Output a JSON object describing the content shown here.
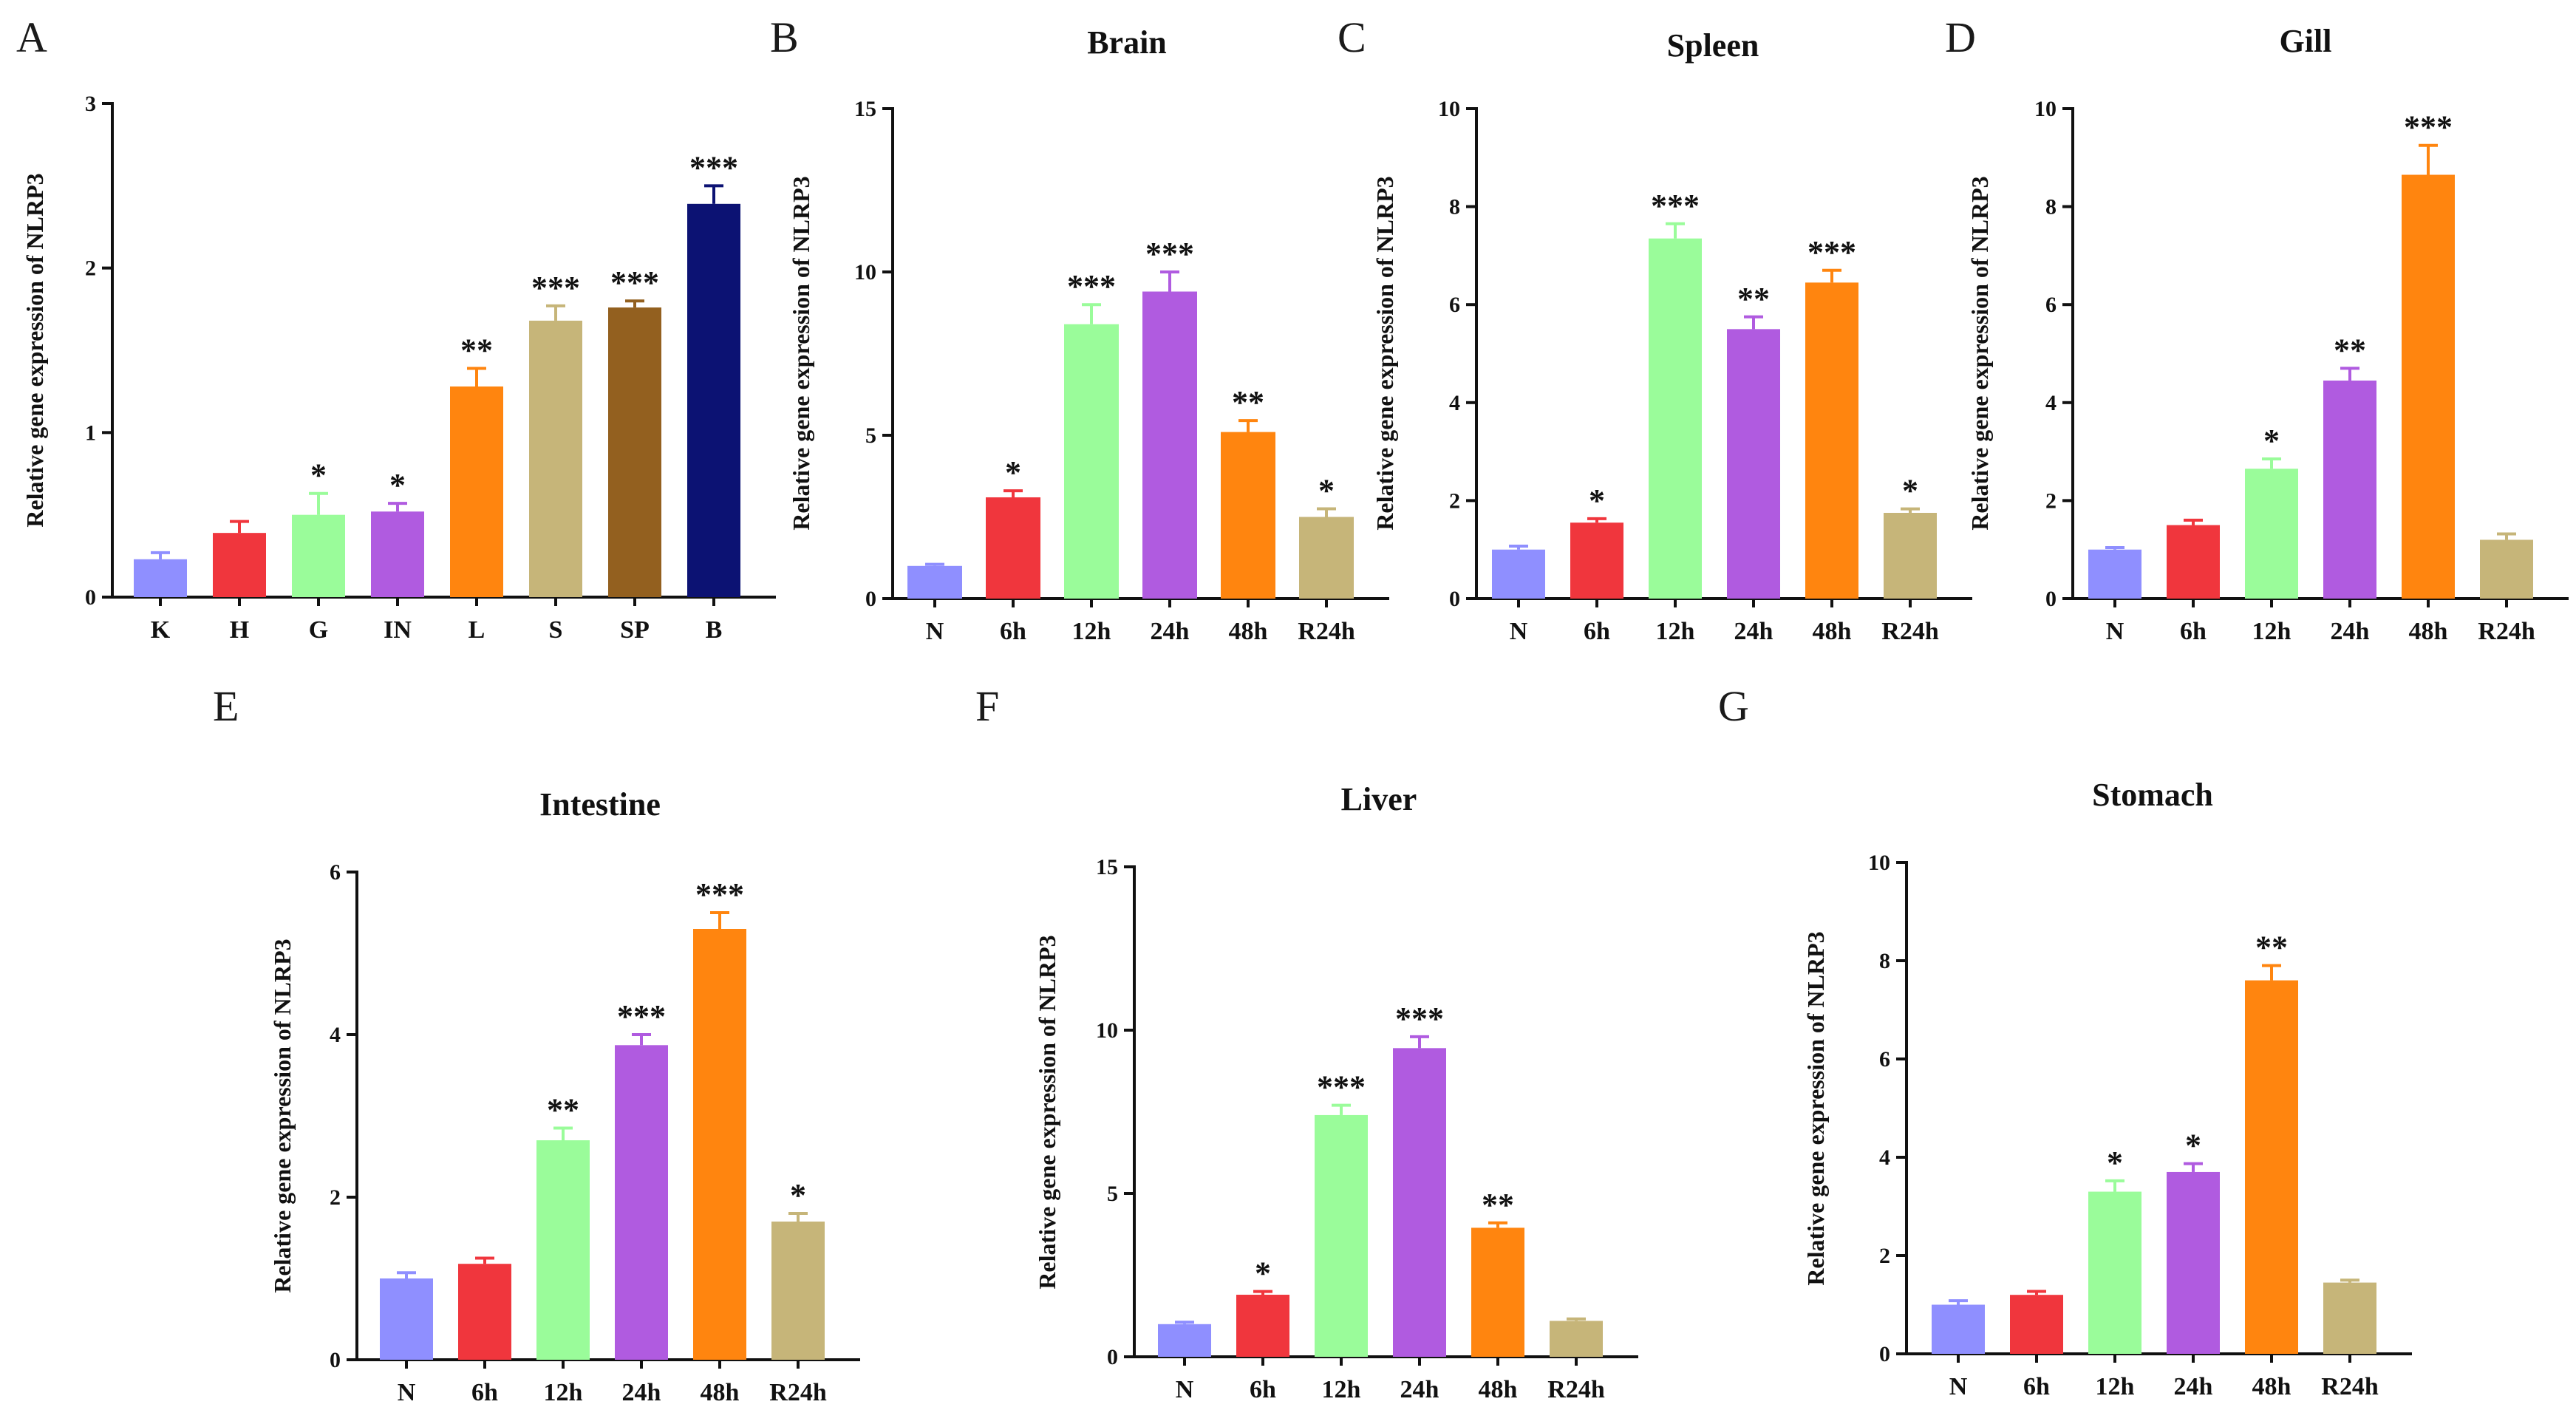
{
  "figure": {
    "colors": {
      "N": "#8f8fff",
      "6h": "#f0363d",
      "12h": "#9afc9a",
      "24h": "#b05be0",
      "48h": "#ff850f",
      "R24h": "#c6b579",
      "K": "#8f8fff",
      "H": "#f0363d",
      "G": "#9afc9a",
      "IN": "#b05be0",
      "L": "#ff850f",
      "S": "#c6b579",
      "SP": "#93601f",
      "B": "#0c1273"
    }
  },
  "chart_data": [
    {
      "panel": "A",
      "title": "",
      "type": "bar",
      "ylabel": "Relative gene expression of NLRP3",
      "ylim": [
        0,
        3
      ],
      "yticks": [
        0,
        1,
        2,
        3
      ],
      "categories": [
        "K",
        "H",
        "G",
        "IN",
        "L",
        "S",
        "SP",
        "B"
      ],
      "values": [
        0.23,
        0.39,
        0.5,
        0.52,
        1.28,
        1.68,
        1.76,
        2.39
      ],
      "errors": [
        0.04,
        0.07,
        0.13,
        0.05,
        0.11,
        0.09,
        0.04,
        0.11
      ],
      "significance": [
        "",
        "",
        "*",
        "*",
        "**",
        "***",
        "***",
        "***"
      ]
    },
    {
      "panel": "B",
      "title": "Brain",
      "type": "bar",
      "ylabel": "Relative gene expression of NLRP3",
      "ylim": [
        0,
        15
      ],
      "yticks": [
        0,
        5,
        10,
        15
      ],
      "categories": [
        "N",
        "6h",
        "12h",
        "24h",
        "48h",
        "R24h"
      ],
      "values": [
        1.0,
        3.1,
        8.4,
        9.4,
        5.1,
        2.5
      ],
      "errors": [
        0.05,
        0.2,
        0.6,
        0.6,
        0.35,
        0.25
      ],
      "significance": [
        "",
        "*",
        "***",
        "***",
        "**",
        "*"
      ]
    },
    {
      "panel": "C",
      "title": "Spleen",
      "type": "bar",
      "ylabel": "Relative gene expression of NLRP3",
      "ylim": [
        0,
        10
      ],
      "yticks": [
        0,
        2,
        4,
        6,
        8,
        10
      ],
      "categories": [
        "N",
        "6h",
        "12h",
        "24h",
        "48h",
        "R24h"
      ],
      "values": [
        1.0,
        1.55,
        7.35,
        5.5,
        6.45,
        1.75
      ],
      "errors": [
        0.07,
        0.08,
        0.3,
        0.25,
        0.25,
        0.08
      ],
      "significance": [
        "",
        "*",
        "***",
        "**",
        "***",
        "*"
      ]
    },
    {
      "panel": "D",
      "title": "Gill",
      "type": "bar",
      "ylabel": "Relative gene expression of NLRP3",
      "ylim": [
        0,
        10
      ],
      "yticks": [
        0,
        2,
        4,
        6,
        8,
        10
      ],
      "categories": [
        "N",
        "6h",
        "12h",
        "24h",
        "48h",
        "R24h"
      ],
      "values": [
        1.0,
        1.5,
        2.65,
        4.45,
        8.65,
        1.2
      ],
      "errors": [
        0.04,
        0.1,
        0.2,
        0.25,
        0.6,
        0.12
      ],
      "significance": [
        "",
        "",
        "*",
        "**",
        "***",
        ""
      ]
    },
    {
      "panel": "E",
      "title": "Intestine",
      "type": "bar",
      "ylabel": "Relative gene expression of NLRP3",
      "ylim": [
        0,
        6
      ],
      "yticks": [
        0,
        2,
        4,
        6
      ],
      "categories": [
        "N",
        "6h",
        "12h",
        "24h",
        "48h",
        "R24h"
      ],
      "values": [
        1.0,
        1.18,
        2.7,
        3.87,
        5.3,
        1.7
      ],
      "errors": [
        0.07,
        0.07,
        0.15,
        0.13,
        0.2,
        0.1
      ],
      "significance": [
        "",
        "",
        "**",
        "***",
        "***",
        "*"
      ]
    },
    {
      "panel": "F",
      "title": "Liver",
      "type": "bar",
      "ylabel": "Relative gene expression of NLRP3",
      "ylim": [
        0,
        15
      ],
      "yticks": [
        0,
        5,
        10,
        15
      ],
      "categories": [
        "N",
        "6h",
        "12h",
        "24h",
        "48h",
        "R24h"
      ],
      "values": [
        1.0,
        1.9,
        7.4,
        9.45,
        3.95,
        1.1
      ],
      "errors": [
        0.06,
        0.1,
        0.3,
        0.35,
        0.15,
        0.06
      ],
      "significance": [
        "",
        "*",
        "***",
        "***",
        "**",
        ""
      ]
    },
    {
      "panel": "G",
      "title": "Stomach",
      "type": "bar",
      "ylabel": "Relative gene expression of NLRP3",
      "ylim": [
        0,
        10
      ],
      "yticks": [
        0,
        2,
        4,
        6,
        8,
        10
      ],
      "categories": [
        "N",
        "6h",
        "12h",
        "24h",
        "48h",
        "R24h"
      ],
      "values": [
        1.0,
        1.2,
        3.3,
        3.7,
        7.6,
        1.45
      ],
      "errors": [
        0.08,
        0.07,
        0.22,
        0.17,
        0.3,
        0.05
      ],
      "significance": [
        "",
        "",
        "*",
        "*",
        "**",
        ""
      ]
    }
  ]
}
